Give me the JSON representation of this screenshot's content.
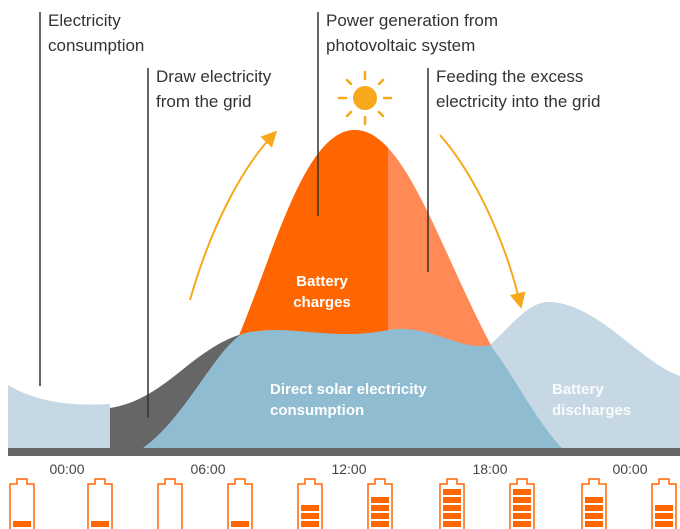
{
  "annotations": [
    {
      "lines": [
        "Electricity",
        "consumption"
      ]
    },
    {
      "lines": [
        "Draw electricity",
        "from the grid"
      ]
    },
    {
      "lines": [
        "Power generation from",
        "photovoltaic system"
      ]
    },
    {
      "lines": [
        "Feeding the excess",
        "electricity into the grid"
      ]
    }
  ],
  "regions": [
    {
      "lines": [
        "Battery",
        "charges"
      ]
    },
    {
      "lines": [
        "Direct solar electricity",
        "consumption"
      ]
    },
    {
      "lines": [
        "Battery",
        "discharges"
      ]
    }
  ],
  "time_labels": [
    "00:00",
    "06:00",
    "12:00",
    "18:00",
    "00:00"
  ]
}
